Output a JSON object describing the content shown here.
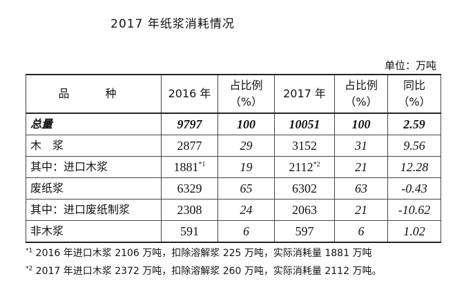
{
  "title": "2017 年纸浆消耗情况",
  "unit": "单位：万吨",
  "table": {
    "header": {
      "col1": "品　种",
      "col2": "2016 年",
      "col3a": "占比例",
      "col3b": "（%）",
      "col4": "2017 年",
      "col5a": "占比例",
      "col5b": "（%）",
      "col6a": "同比",
      "col6b": "（%）"
    },
    "rows": [
      {
        "label": "总量",
        "v2016": "9797",
        "s2016": "",
        "p2016": "100",
        "v2017": "10051",
        "s2017": "",
        "p2017": "100",
        "yoy": "2.59"
      },
      {
        "label": "木　浆",
        "v2016": "2877",
        "s2016": "",
        "p2016": "29",
        "v2017": "3152",
        "s2017": "",
        "p2017": "31",
        "yoy": "9.56"
      },
      {
        "label": "其中：进口木浆",
        "v2016": "1881",
        "s2016": "*1",
        "p2016": "19",
        "v2017": "2112",
        "s2017": "*2",
        "p2017": "21",
        "yoy": "12.28"
      },
      {
        "label": "废纸浆",
        "v2016": "6329",
        "s2016": "",
        "p2016": "65",
        "v2017": "6302",
        "s2017": "",
        "p2017": "63",
        "yoy": "-0.43"
      },
      {
        "label": "其中：进口废纸制浆",
        "v2016": "2308",
        "s2016": "",
        "p2016": "24",
        "v2017": "2063",
        "s2017": "",
        "p2017": "21",
        "yoy": "-10.62"
      },
      {
        "label": "非木浆",
        "v2016": "591",
        "s2016": "",
        "p2016": "6",
        "v2017": "597",
        "s2017": "",
        "p2017": "6",
        "yoy": "1.02"
      }
    ]
  },
  "notes": [
    {
      "mark": "*1",
      "text": " 2016 年进口木浆 2106 万吨，扣除溶解浆 225 万吨，实际消耗量 1881 万吨"
    },
    {
      "mark": "*2",
      "text": " 2017 年进口木浆 2372 万吨，扣除溶解浆 260 万吨，实际消耗量 2112 万吨。"
    }
  ]
}
